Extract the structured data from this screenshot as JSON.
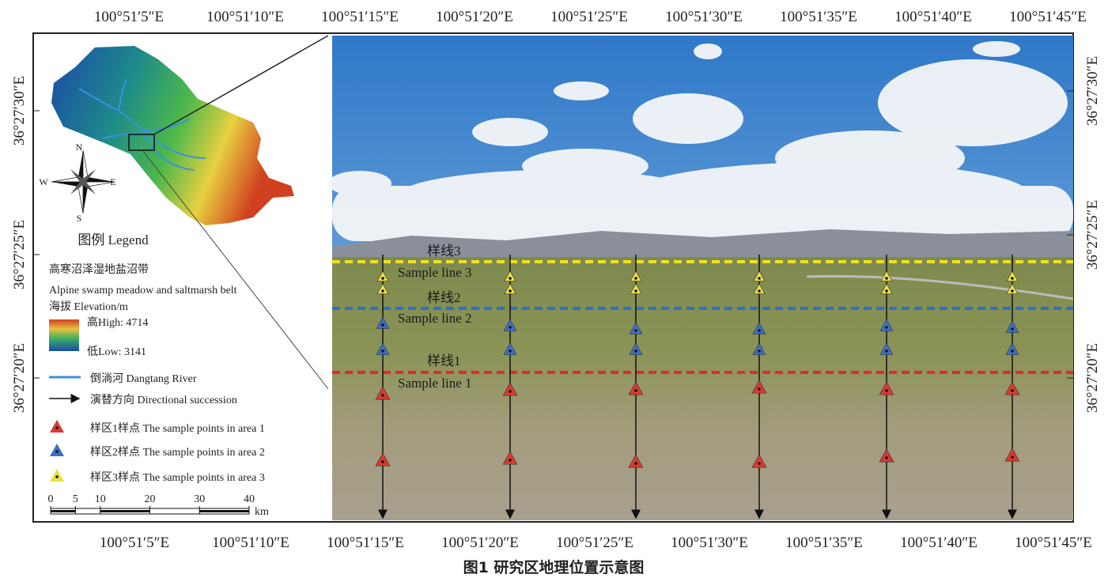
{
  "axes": {
    "top": [
      "100°51′5″E",
      "100°51′10″E",
      "100°51′15″E",
      "100°51′20″E",
      "100°51′25″E",
      "100°51′30″E",
      "100°51′35″E",
      "100°51′40″E",
      "100°51′45″E"
    ],
    "bottom": [
      "100°51′5″E",
      "100°51′10″E",
      "100°51′15″E",
      "100°51′20″E",
      "100°51′25″E",
      "100°51′30″E",
      "100°51′35″E",
      "100°51′40″E",
      "100°51′45″E"
    ],
    "left": [
      "36°27′30″E",
      "36°27′25″E",
      "36°27′20″E"
    ],
    "right": [
      "36°27′30″E",
      "36°27′25″E",
      "36°27′20″E"
    ]
  },
  "compass": {
    "n": "N",
    "s": "S",
    "w": "W",
    "e": "E"
  },
  "legend": {
    "title": "图例 Legend",
    "belt_cn": "高寒沼泽湿地盐沼带",
    "belt_en": "Alpine swamp meadow and saltmarsh belt",
    "elevation": "海拔 Elevation/m",
    "high": "高High: 4714",
    "low": "低Low: 3141",
    "river": "倒淌河 Dangtang River",
    "succession": "演替方向 Directional succession",
    "area1": "样区1样点 The sample points in area 1",
    "area2": "样区2样点 The sample points in area 2",
    "area3": "样区3样点 The sample points in area 3"
  },
  "scale": {
    "ticks": [
      0,
      5,
      10,
      20,
      30,
      40
    ],
    "unit": "km"
  },
  "photo": {
    "line3_cn": "样线3",
    "line3_en": "Sample line 3",
    "line2_cn": "样线2",
    "line2_en": "Sample line 2",
    "line1_cn": "样线1",
    "line1_en": "Sample line 1"
  },
  "caption": "图1 研究区地理位置示意图"
}
